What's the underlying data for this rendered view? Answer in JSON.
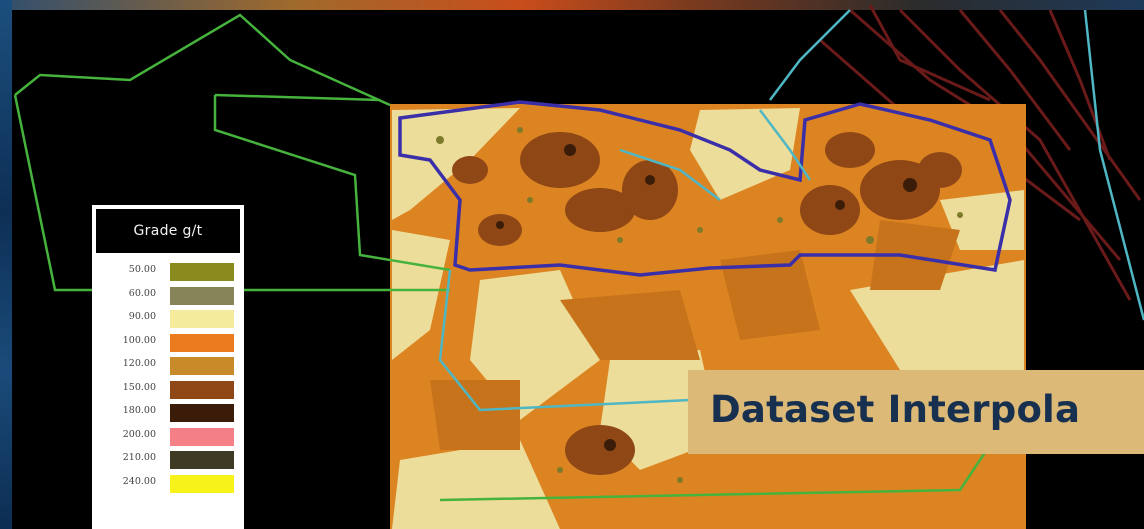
{
  "legend": {
    "title": "Grade g/t",
    "entries": [
      {
        "value": "50.00",
        "color": "#8a8a1f"
      },
      {
        "value": "60.00",
        "color": "#87845a"
      },
      {
        "value": "90.00",
        "color": "#f4eb9c"
      },
      {
        "value": "100.00",
        "color": "#ec7a1e"
      },
      {
        "value": "120.00",
        "color": "#c98a2a"
      },
      {
        "value": "150.00",
        "color": "#8f4716"
      },
      {
        "value": "180.00",
        "color": "#3a1c08"
      },
      {
        "value": "200.00",
        "color": "#f47f86"
      },
      {
        "value": "210.00",
        "color": "#3e3a24"
      },
      {
        "value": "240.00",
        "color": "#f7f21a"
      }
    ]
  },
  "banner": {
    "text": "Dataset Interpola"
  },
  "colors": {
    "background": "#000000",
    "map_base": "#dd8422",
    "light_zone": "#ecdd9a",
    "dark_zone": "#a35518",
    "pit_outline": "#3a2fa8",
    "boundary_green": "#45b33c",
    "boundary_cyan": "#4fb6c4",
    "road_red": "#6b1a1a",
    "banner_bg": "#dcb977",
    "banner_text": "#17304f"
  }
}
